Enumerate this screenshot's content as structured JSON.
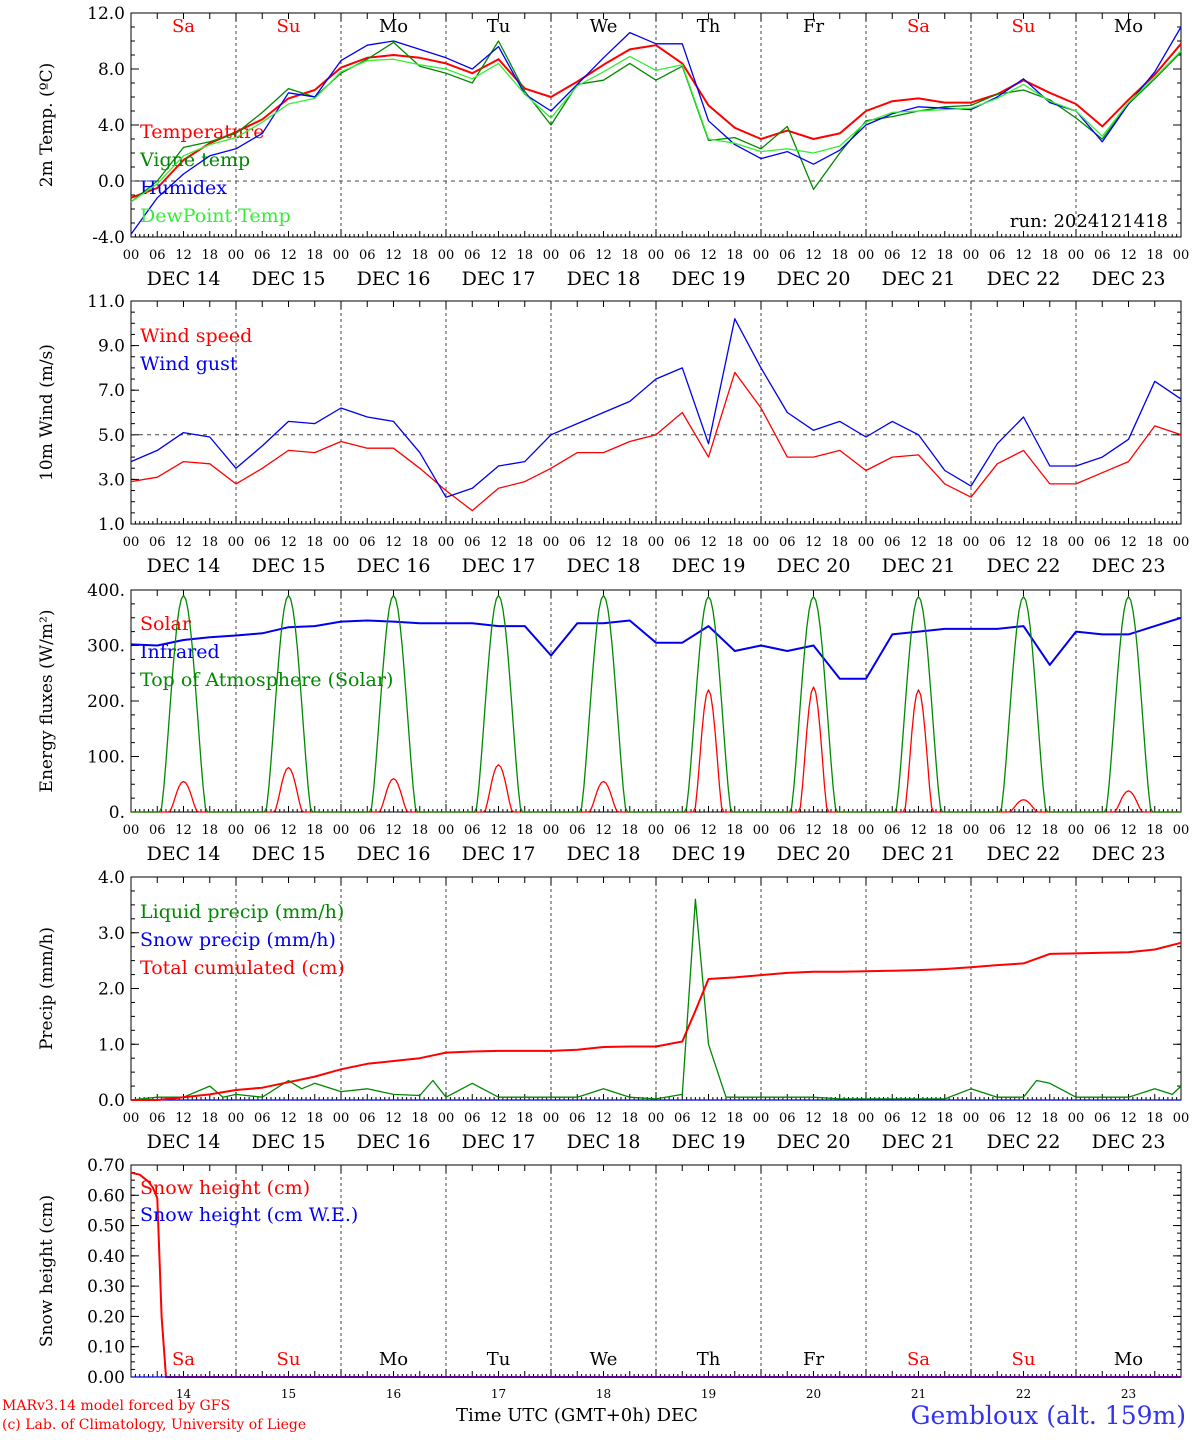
{
  "run_label": "run: 2024121418",
  "footer": {
    "model_line": "MARv3.14 model forced by GFS",
    "copyright_line": "(c) Lab. of Climatology, University of Liege",
    "time_axis": "Time UTC (GMT+0h) DEC",
    "station": "Gembloux (alt. 159m)"
  },
  "days": [
    {
      "abbr": "Sa",
      "date": "DEC 14",
      "num": "14",
      "weekend": true
    },
    {
      "abbr": "Su",
      "date": "DEC 15",
      "num": "15",
      "weekend": true
    },
    {
      "abbr": "Mo",
      "date": "DEC 16",
      "num": "16",
      "weekend": false
    },
    {
      "abbr": "Tu",
      "date": "DEC 17",
      "num": "17",
      "weekend": false
    },
    {
      "abbr": "We",
      "date": "DEC 18",
      "num": "18",
      "weekend": false
    },
    {
      "abbr": "Th",
      "date": "DEC 19",
      "num": "19",
      "weekend": false
    },
    {
      "abbr": "Fr",
      "date": "DEC 20",
      "num": "20",
      "weekend": false
    },
    {
      "abbr": "Sa",
      "date": "DEC 21",
      "num": "21",
      "weekend": true
    },
    {
      "abbr": "Su",
      "date": "DEC 22",
      "num": "22",
      "weekend": true
    },
    {
      "abbr": "Mo",
      "date": "DEC 23",
      "num": "23",
      "weekend": false
    }
  ],
  "hour_ticks": [
    "00",
    "06",
    "12",
    "18"
  ],
  "colors": {
    "red": "#ff0000",
    "dark_green": "#008800",
    "blue": "#0000ee",
    "light_green": "#33ee33",
    "grid": "#555555"
  },
  "chart_data": [
    {
      "id": "temp",
      "type": "line",
      "ylabel": "2m Temp. (ºC)",
      "ylim": [
        -4,
        12
      ],
      "yticks": [
        "-4.0",
        "0.0",
        "4.0",
        "8.0",
        "12.0"
      ],
      "ytick_values": [
        -4,
        0,
        4,
        8,
        12
      ],
      "x_unit": "hours since DEC 14 00 UTC",
      "xlim": [
        0,
        240
      ],
      "series": [
        {
          "name": "Temperature",
          "color": "#ff0000",
          "x": [
            0,
            6,
            12,
            18,
            24,
            30,
            36,
            42,
            48,
            54,
            60,
            66,
            72,
            78,
            84,
            90,
            96,
            102,
            108,
            114,
            120,
            126,
            132,
            138,
            144,
            150,
            156,
            162,
            168,
            174,
            180,
            186,
            192,
            198,
            204,
            210,
            216,
            222,
            228,
            234,
            240
          ],
          "y": [
            -1.2,
            -0.5,
            1.5,
            2.7,
            3.5,
            4.4,
            5.9,
            6.5,
            8.1,
            8.8,
            9.0,
            8.8,
            8.4,
            7.7,
            8.7,
            6.6,
            6.0,
            7.1,
            8.3,
            9.4,
            9.7,
            8.4,
            5.4,
            3.8,
            3.0,
            3.6,
            3.0,
            3.4,
            5.0,
            5.7,
            5.9,
            5.6,
            5.6,
            6.2,
            7.2,
            6.3,
            5.5,
            3.9,
            5.8,
            7.6,
            9.8
          ]
        },
        {
          "name": "Vigne temp",
          "color": "#008800",
          "x": [
            0,
            6,
            12,
            18,
            24,
            30,
            36,
            42,
            48,
            54,
            60,
            66,
            72,
            78,
            84,
            90,
            96,
            102,
            108,
            114,
            120,
            126,
            132,
            138,
            144,
            150,
            156,
            162,
            168,
            174,
            180,
            186,
            192,
            198,
            204,
            210,
            216,
            222,
            228,
            234,
            240
          ],
          "y": [
            -1.5,
            0.0,
            2.4,
            2.8,
            3.4,
            4.9,
            6.6,
            6.0,
            7.7,
            8.7,
            9.9,
            8.2,
            7.7,
            7.0,
            10.0,
            6.4,
            4.0,
            6.9,
            7.2,
            8.4,
            7.2,
            8.2,
            2.9,
            3.1,
            2.3,
            3.9,
            -0.6,
            2.0,
            4.3,
            4.6,
            5.0,
            5.3,
            5.4,
            6.2,
            6.5,
            5.8,
            4.5,
            3.0,
            5.5,
            7.3,
            9.2
          ]
        },
        {
          "name": "Humidex",
          "color": "#0000ee",
          "x": [
            0,
            6,
            12,
            18,
            24,
            30,
            36,
            42,
            48,
            54,
            60,
            66,
            72,
            78,
            84,
            90,
            96,
            102,
            108,
            114,
            120,
            126,
            132,
            138,
            144,
            150,
            156,
            162,
            168,
            174,
            180,
            186,
            192,
            198,
            204,
            210,
            216,
            222,
            228,
            234,
            240
          ],
          "y": [
            -3.8,
            -1.2,
            0.5,
            1.8,
            2.3,
            3.4,
            6.3,
            6.0,
            8.6,
            9.7,
            10.0,
            9.4,
            8.8,
            8.0,
            9.6,
            6.2,
            5.0,
            6.9,
            8.8,
            10.6,
            9.8,
            9.8,
            4.3,
            2.6,
            1.6,
            2.1,
            1.2,
            2.2,
            4.0,
            4.8,
            5.3,
            5.2,
            5.1,
            6.0,
            7.3,
            5.6,
            5.0,
            2.8,
            5.5,
            7.8,
            11.0
          ]
        },
        {
          "name": "DewPoint Temp",
          "color": "#33ee33",
          "x": [
            0,
            6,
            12,
            18,
            24,
            30,
            36,
            42,
            48,
            54,
            60,
            66,
            72,
            78,
            84,
            90,
            96,
            102,
            108,
            114,
            120,
            126,
            132,
            138,
            144,
            150,
            156,
            162,
            168,
            174,
            180,
            186,
            192,
            198,
            204,
            210,
            216,
            222,
            228,
            234,
            240
          ],
          "y": [
            -1.5,
            -0.2,
            1.8,
            2.6,
            3.1,
            4.2,
            5.5,
            5.9,
            7.8,
            8.6,
            8.7,
            8.3,
            8.0,
            7.3,
            8.4,
            6.2,
            4.5,
            6.8,
            7.8,
            8.9,
            7.9,
            8.3,
            3.0,
            2.7,
            2.1,
            2.3,
            2.0,
            2.5,
            4.2,
            4.9,
            5.0,
            5.1,
            5.2,
            5.9,
            6.9,
            5.7,
            5.0,
            3.2,
            5.6,
            7.4,
            9.3
          ]
        }
      ]
    },
    {
      "id": "wind",
      "type": "line",
      "ylabel": "10m Wind (m/s)",
      "ylim": [
        1,
        11
      ],
      "yticks": [
        "1.0",
        "3.0",
        "5.0",
        "7.0",
        "9.0",
        "11.0"
      ],
      "ytick_values": [
        1,
        3,
        5,
        7,
        9,
        11
      ],
      "reference_line": 5,
      "x_unit": "hours since DEC 14 00 UTC",
      "xlim": [
        0,
        240
      ],
      "series": [
        {
          "name": "Wind speed",
          "color": "#ff0000",
          "x": [
            0,
            6,
            12,
            18,
            24,
            30,
            36,
            42,
            48,
            54,
            60,
            66,
            72,
            78,
            84,
            90,
            96,
            102,
            108,
            114,
            120,
            126,
            132,
            138,
            144,
            150,
            156,
            162,
            168,
            174,
            180,
            186,
            192,
            198,
            204,
            210,
            216,
            222,
            228,
            234,
            240
          ],
          "y": [
            2.9,
            3.1,
            3.8,
            3.7,
            2.8,
            3.5,
            4.3,
            4.2,
            4.7,
            4.4,
            4.4,
            3.5,
            2.5,
            1.6,
            2.6,
            2.9,
            3.5,
            4.2,
            4.2,
            4.7,
            5.0,
            6.0,
            4.0,
            7.8,
            6.2,
            4.0,
            4.0,
            4.3,
            3.4,
            4.0,
            4.1,
            2.8,
            2.2,
            3.7,
            4.3,
            2.8,
            2.8,
            3.3,
            3.8,
            5.4,
            5.0
          ]
        },
        {
          "name": "Wind gust",
          "color": "#0000ee",
          "x": [
            0,
            6,
            12,
            18,
            24,
            30,
            36,
            42,
            48,
            54,
            60,
            66,
            72,
            78,
            84,
            90,
            96,
            102,
            108,
            114,
            120,
            126,
            132,
            138,
            144,
            150,
            156,
            162,
            168,
            174,
            180,
            186,
            192,
            198,
            204,
            210,
            216,
            222,
            228,
            234,
            240
          ],
          "y": [
            3.8,
            4.3,
            5.1,
            4.9,
            3.5,
            4.5,
            5.6,
            5.5,
            6.2,
            5.8,
            5.6,
            4.2,
            2.2,
            2.6,
            3.6,
            3.8,
            5.0,
            5.5,
            6.0,
            6.5,
            7.5,
            8.0,
            4.6,
            10.2,
            8.0,
            6.0,
            5.2,
            5.6,
            4.9,
            5.6,
            5.0,
            3.4,
            2.7,
            4.6,
            5.8,
            3.6,
            3.6,
            4.0,
            4.8,
            7.4,
            6.6
          ]
        }
      ]
    },
    {
      "id": "flux",
      "type": "line",
      "ylabel": "Energy fluxes (W/m²)",
      "ylim": [
        0,
        400
      ],
      "yticks": [
        "0.",
        "100.",
        "200.",
        "300.",
        "400."
      ],
      "ytick_values": [
        0,
        100,
        200,
        300,
        400
      ],
      "x_unit": "hours since DEC 14 00 UTC",
      "xlim": [
        0,
        240
      ],
      "series": [
        {
          "name": "Solar",
          "color": "#ff0000",
          "daily_peak": [
            55,
            80,
            60,
            85,
            55,
            220,
            225,
            220,
            22,
            38
          ]
        },
        {
          "name": "Infrared",
          "color": "#0000ee",
          "x": [
            0,
            6,
            12,
            18,
            24,
            30,
            36,
            42,
            48,
            54,
            60,
            66,
            72,
            78,
            84,
            90,
            96,
            102,
            108,
            114,
            120,
            126,
            132,
            138,
            144,
            150,
            156,
            162,
            168,
            174,
            180,
            186,
            192,
            198,
            204,
            210,
            216,
            222,
            228,
            234,
            240
          ],
          "y": [
            302,
            300,
            310,
            315,
            318,
            322,
            333,
            335,
            343,
            345,
            343,
            340,
            340,
            340,
            335,
            335,
            282,
            340,
            340,
            345,
            305,
            305,
            335,
            290,
            300,
            290,
            300,
            240,
            240,
            320,
            325,
            330,
            330,
            330,
            335,
            265,
            325,
            320,
            320,
            335,
            350
          ]
        },
        {
          "name": "Top of Atmosphere (Solar)",
          "color": "#008800",
          "daily_peak": [
            390,
            390,
            390,
            390,
            390,
            388,
            388,
            388,
            388,
            388
          ]
        }
      ]
    },
    {
      "id": "precip",
      "type": "line",
      "ylabel": "Precip (mm/h)",
      "ylim": [
        0,
        4
      ],
      "yticks": [
        "0.0",
        "1.0",
        "2.0",
        "3.0",
        "4.0"
      ],
      "ytick_values": [
        0,
        1,
        2,
        3,
        4
      ],
      "x_unit": "hours since DEC 14 00 UTC",
      "xlim": [
        0,
        240
      ],
      "series": [
        {
          "name": "Liquid precip (mm/h)",
          "color": "#008800",
          "x": [
            0,
            6,
            12,
            18,
            21,
            24,
            30,
            36,
            39,
            42,
            48,
            54,
            60,
            66,
            69,
            72,
            78,
            84,
            90,
            96,
            102,
            108,
            114,
            120,
            126,
            129,
            132,
            136,
            138,
            144,
            150,
            156,
            162,
            168,
            174,
            180,
            186,
            192,
            198,
            204,
            207,
            210,
            216,
            222,
            228,
            234,
            238,
            240
          ],
          "y": [
            0.0,
            0.05,
            0.05,
            0.25,
            0.05,
            0.1,
            0.05,
            0.35,
            0.2,
            0.3,
            0.15,
            0.2,
            0.1,
            0.08,
            0.35,
            0.05,
            0.3,
            0.05,
            0.05,
            0.05,
            0.05,
            0.2,
            0.05,
            0.02,
            0.1,
            3.6,
            1.0,
            0.05,
            0.05,
            0.05,
            0.05,
            0.05,
            0.02,
            0.02,
            0.02,
            0.02,
            0.02,
            0.2,
            0.05,
            0.05,
            0.35,
            0.3,
            0.05,
            0.05,
            0.05,
            0.2,
            0.1,
            0.25
          ]
        },
        {
          "name": "Snow precip (mm/h)",
          "color": "#0000ee",
          "x": [
            0,
            240
          ],
          "y": [
            0.0,
            0.0
          ]
        },
        {
          "name": "Total cumulated (cm)",
          "color": "#ff0000",
          "x": [
            0,
            6,
            12,
            18,
            24,
            30,
            36,
            42,
            48,
            54,
            60,
            66,
            72,
            78,
            84,
            90,
            96,
            102,
            108,
            114,
            120,
            126,
            129,
            132,
            138,
            144,
            150,
            156,
            162,
            168,
            174,
            180,
            186,
            192,
            198,
            204,
            210,
            216,
            222,
            228,
            234,
            240
          ],
          "y": [
            0.0,
            0.0,
            0.05,
            0.1,
            0.18,
            0.22,
            0.32,
            0.42,
            0.55,
            0.65,
            0.7,
            0.75,
            0.85,
            0.87,
            0.88,
            0.88,
            0.88,
            0.9,
            0.95,
            0.96,
            0.96,
            1.05,
            1.6,
            2.17,
            2.2,
            2.24,
            2.28,
            2.3,
            2.3,
            2.31,
            2.32,
            2.33,
            2.35,
            2.38,
            2.42,
            2.45,
            2.62,
            2.63,
            2.64,
            2.65,
            2.7,
            2.82
          ]
        }
      ]
    },
    {
      "id": "snow",
      "type": "line",
      "ylabel": "Snow height (cm)",
      "ylim": [
        0,
        0.7
      ],
      "yticks": [
        "0.00",
        "0.10",
        "0.20",
        "0.30",
        "0.40",
        "0.50",
        "0.60",
        "0.70"
      ],
      "ytick_values": [
        0,
        0.1,
        0.2,
        0.3,
        0.4,
        0.5,
        0.6,
        0.7
      ],
      "x_unit": "hours since DEC 14 00 UTC",
      "xlim": [
        0,
        240
      ],
      "series": [
        {
          "name": "Snow height (cm)",
          "color": "#ff0000",
          "x": [
            0,
            2,
            4,
            5,
            6,
            7,
            8,
            240
          ],
          "y": [
            0.675,
            0.668,
            0.645,
            0.625,
            0.59,
            0.2,
            0.0,
            0.0
          ]
        },
        {
          "name": "Snow height (cm W.E.)",
          "color": "#0000ee",
          "x": [
            0,
            240
          ],
          "y": [
            0.0,
            0.0
          ]
        }
      ]
    }
  ]
}
